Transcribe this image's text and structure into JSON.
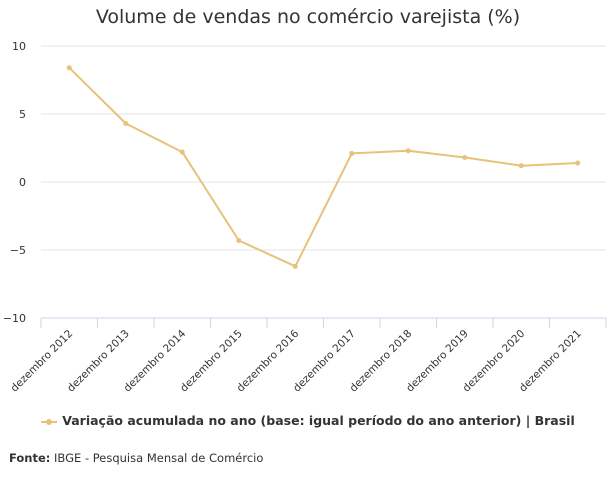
{
  "chart_data": {
    "type": "line",
    "title": "Volume de vendas no comércio varejista (%)",
    "xlabel": "",
    "ylabel": "",
    "categories": [
      "dezembro 2012",
      "dezembro 2013",
      "dezembro 2014",
      "dezembro 2015",
      "dezembro 2016",
      "dezembro 2017",
      "dezembro 2018",
      "dezembro 2019",
      "dezembro 2020",
      "dezembro 2021"
    ],
    "series": [
      {
        "name": "Variação acumulada no ano (base: igual período do ano anterior) | Brasil",
        "values": [
          8.4,
          4.3,
          2.2,
          -4.3,
          -6.2,
          2.1,
          2.3,
          1.8,
          1.2,
          1.4
        ],
        "color": "#e8c17a"
      }
    ],
    "ylim": [
      -10,
      10
    ],
    "yticks": [
      10,
      5,
      0,
      -5,
      -10
    ],
    "grid": true,
    "legend": "bottom"
  },
  "source": {
    "label": "Fonte:",
    "text": "IBGE - Pesquisa Mensal de Comércio"
  },
  "colors": {
    "series": "#e8c17a",
    "grid": "#e6e6e6",
    "axis": "#ccd6eb"
  }
}
